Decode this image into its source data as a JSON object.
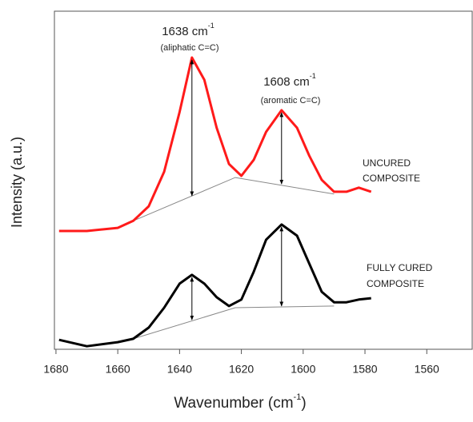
{
  "chart_data": {
    "type": "line",
    "x_label": {
      "text": "Wavenumber (cm",
      "sup": "-1",
      "end": ")"
    },
    "y_label": "Intensity (a.u.)",
    "xlim": [
      1680.5,
      1545.3
    ],
    "ylim": [
      0,
      100
    ],
    "xticks": [
      1680,
      1660,
      1640,
      1620,
      1600,
      1580,
      1560
    ],
    "x": [
      1679,
      1670,
      1660,
      1655,
      1650,
      1645,
      1640,
      1636,
      1632,
      1628,
      1624,
      1620,
      1616,
      1612,
      1607,
      1602,
      1598,
      1594,
      1590,
      1586,
      1582,
      1578
    ],
    "series": [
      {
        "name": [
          "UNCURED",
          "COMPOSITE"
        ],
        "color": "#ff1a1a",
        "values": [
          35,
          35,
          35.9,
          38,
          42.3,
          52.5,
          70.2,
          86.3,
          79.7,
          65.5,
          54.8,
          51.3,
          56,
          64.3,
          70.7,
          65.5,
          57.2,
          50.1,
          46.6,
          46.6,
          47.8,
          46.6
        ]
      },
      {
        "name": [
          "FULLY CURED",
          "COMPOSITE"
        ],
        "color": "#000000",
        "values": [
          2.8,
          0.9,
          2.1,
          3.1,
          6.4,
          12.3,
          19.4,
          22,
          19.4,
          15.4,
          12.8,
          14.7,
          22.9,
          32.4,
          36.9,
          33.6,
          25.3,
          17,
          13.9,
          13.9,
          14.7,
          15.1
        ]
      }
    ],
    "baselines": [
      {
        "x": [
          1655,
          1622,
          1590
        ],
        "values": [
          38,
          50.8,
          45.9
        ]
      },
      {
        "x": [
          1655,
          1622,
          1590
        ],
        "values": [
          3.1,
          12.3,
          12.8
        ]
      }
    ],
    "arrows": [
      {
        "x": 1636,
        "top": 86.3,
        "bottom": 45.4
      },
      {
        "x": 1607,
        "top": 70.7,
        "bottom": 48.9
      },
      {
        "x": 1636,
        "top": 22,
        "bottom": 8.7
      },
      {
        "x": 1607,
        "top": 36.9,
        "bottom": 12.8
      }
    ],
    "annotations": [
      {
        "text": "1638 cm",
        "sup": "-1",
        "note": "(aliphatic C=C)"
      },
      {
        "text": "1608 cm",
        "sup": "-1",
        "note": "(aromatic C=C)"
      }
    ]
  }
}
